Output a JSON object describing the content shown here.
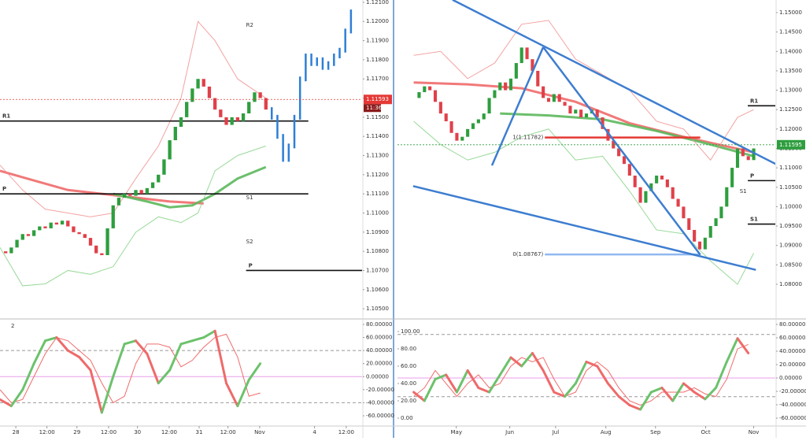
{
  "panels": [
    {
      "xlim": [
        0,
        64
      ],
      "xticks": [
        {
          "value": 2.8,
          "label": "28"
        },
        {
          "value": 8.3,
          "label": "12:00"
        },
        {
          "value": 13.6,
          "label": "29"
        },
        {
          "value": 19.2,
          "label": "12:00"
        },
        {
          "value": 24.3,
          "label": "30"
        },
        {
          "value": 29.9,
          "label": "12:00"
        },
        {
          "value": 35.2,
          "label": "31"
        },
        {
          "value": 40.3,
          "label": "12:00"
        },
        {
          "value": 45.9,
          "label": "Nov"
        },
        {
          "value": 55.6,
          "label": "4"
        },
        {
          "value": 61.2,
          "label": "12:00"
        }
      ],
      "price": {
        "ylim": [
          1.10447,
          1.12112
        ],
        "yticks": [
          {
            "value": 1.105,
            "label": "1.10500"
          },
          {
            "value": 1.106,
            "label": "1.10600"
          },
          {
            "value": 1.107,
            "label": "1.10700"
          },
          {
            "value": 1.108,
            "label": "1.10800"
          },
          {
            "value": 1.109,
            "label": "1.10900"
          },
          {
            "value": 1.11,
            "label": "1.11000"
          },
          {
            "value": 1.111,
            "label": "1.11100"
          },
          {
            "value": 1.112,
            "label": "1.11200"
          },
          {
            "value": 1.113,
            "label": "1.11300"
          },
          {
            "value": 1.114,
            "label": "1.11400"
          },
          {
            "value": 1.115,
            "label": "1.11500"
          },
          {
            "value": 1.116,
            "label": "1.11600"
          },
          {
            "value": 1.117,
            "label": "1.11700"
          },
          {
            "value": 1.118,
            "label": "1.11800"
          },
          {
            "value": 1.119,
            "label": "1.11900"
          },
          {
            "value": 1.12,
            "label": "1.12000"
          },
          {
            "value": 1.121,
            "label": "1.12100"
          }
        ],
        "closes": [
          1.108,
          1.1079,
          1.1082,
          1.1086,
          1.1089,
          1.1088,
          1.1091,
          1.1093,
          1.1092,
          1.1095,
          1.1094,
          1.1096,
          1.1093,
          1.109,
          1.1089,
          1.1087,
          1.1083,
          1.1079,
          1.1078,
          1.1092,
          1.1104,
          1.1108,
          1.111,
          1.1109,
          1.1112,
          1.111,
          1.1113,
          1.1116,
          1.112,
          1.1128,
          1.1138,
          1.1145,
          1.115,
          1.1158,
          1.1165,
          1.117,
          1.1166,
          1.116,
          1.1154,
          1.115,
          1.1146,
          1.115,
          1.1148,
          1.1152,
          1.1158,
          1.1163,
          1.116,
          1.1154
        ],
        "projection": [
          1.115,
          1.114,
          1.1128,
          1.1135,
          1.115,
          1.117,
          1.1182,
          1.1178,
          1.118,
          1.1176,
          1.1178,
          1.1182,
          1.1185,
          1.1195,
          1.1205
        ],
        "lines": [
          {
            "color": "#f06a6a",
            "width": 3,
            "x": [
              0,
              6,
              12,
              18,
              24,
              30,
              36
            ],
            "values": [
              1.1122,
              1.1117,
              1.1112,
              1.111,
              1.1108,
              1.1106,
              1.1105
            ]
          },
          {
            "color": "#5cb85c",
            "width": 3,
            "x": [
              20,
              26,
              30,
              34,
              38,
              42,
              47
            ],
            "values": [
              1.111,
              1.1106,
              1.1103,
              1.1104,
              1.111,
              1.1118,
              1.1124
            ]
          },
          {
            "color": "#f08c8c",
            "width": 1,
            "x": [
              0,
              4,
              8,
              12,
              16,
              20,
              24,
              28,
              32,
              35,
              38,
              42,
              47
            ],
            "values": [
              1.1125,
              1.1112,
              1.1102,
              1.11,
              1.1098,
              1.11,
              1.1118,
              1.1135,
              1.116,
              1.12,
              1.119,
              1.117,
              1.116
            ]
          },
          {
            "color": "#7fd07f",
            "width": 1,
            "x": [
              0,
              4,
              8,
              12,
              16,
              20,
              24,
              28,
              32,
              35,
              38,
              42,
              47
            ],
            "values": [
              1.1082,
              1.1062,
              1.1063,
              1.107,
              1.1068,
              1.1072,
              1.109,
              1.1098,
              1.1095,
              1.11,
              1.1122,
              1.113,
              1.1135
            ]
          }
        ],
        "levels": [
          {
            "label": "R1",
            "value": 1.1148,
            "x": [
              0,
              54.5
            ]
          },
          {
            "label": "P",
            "value": 1.111,
            "x": [
              0,
              54.5
            ]
          },
          {
            "label": "P",
            "value": 1.107,
            "x": [
              43.5,
              64
            ]
          }
        ],
        "faint_levels": [
          {
            "label": "R2",
            "value": 1.1198,
            "x": 43.5
          },
          {
            "label": "S1",
            "value": 1.1108,
            "x": 43.5
          },
          {
            "label": "S2",
            "value": 1.1085,
            "x": 43.5
          }
        ],
        "price_tag": {
          "label": "1.11593",
          "value": 1.11593,
          "time": "11:36",
          "color": "#e53935"
        }
      },
      "osc": {
        "label": "2",
        "ylim": [
          -74.5,
          88.4
        ],
        "yticks": [
          {
            "value": 80,
            "label": "80.00000"
          },
          {
            "value": 60,
            "label": "60.00000"
          },
          {
            "value": 40,
            "label": "40.00000"
          },
          {
            "value": 20,
            "label": "20.00000"
          },
          {
            "value": 0,
            "label": "0.00000"
          },
          {
            "value": -20,
            "label": "-20.00000"
          },
          {
            "value": -40,
            "label": "-40.00000"
          },
          {
            "value": -60,
            "label": "-60.00000"
          }
        ],
        "dashed": [
          40,
          -40
        ],
        "zero": 0,
        "x": [
          0,
          2,
          4,
          6,
          8,
          10,
          12,
          14,
          16,
          18,
          20,
          22,
          24,
          26,
          28,
          30,
          32,
          34,
          36,
          38,
          40,
          42,
          44,
          46
        ],
        "main": [
          -35,
          -45,
          -20,
          20,
          55,
          60,
          40,
          30,
          10,
          -55,
          0,
          50,
          55,
          35,
          -10,
          10,
          50,
          55,
          60,
          70,
          -10,
          -45,
          -5,
          20
        ],
        "signal": [
          -20,
          -40,
          -35,
          0,
          35,
          60,
          55,
          40,
          25,
          -10,
          -40,
          -30,
          20,
          50,
          50,
          45,
          15,
          25,
          45,
          60,
          65,
          30,
          -30,
          -25
        ]
      }
    },
    {
      "xlim": [
        -3,
        67
      ],
      "xticks": [
        {
          "value": 7.9,
          "label": "May"
        },
        {
          "value": 17.8,
          "label": "Jun"
        },
        {
          "value": 26.3,
          "label": "Jul"
        },
        {
          "value": 35.6,
          "label": "Aug"
        },
        {
          "value": 44.8,
          "label": "Sep"
        },
        {
          "value": 54.1,
          "label": "Oct"
        },
        {
          "value": 63,
          "label": "Nov"
        }
      ],
      "price": {
        "ylim": [
          1.07106,
          1.15325
        ],
        "yticks": [
          {
            "value": 1.08,
            "label": "1.08000"
          },
          {
            "value": 1.085,
            "label": "1.08500"
          },
          {
            "value": 1.09,
            "label": "1.09000"
          },
          {
            "value": 1.095,
            "label": "1.09500"
          },
          {
            "value": 1.1,
            "label": "1.10000"
          },
          {
            "value": 1.105,
            "label": "1.10500"
          },
          {
            "value": 1.11,
            "label": "1.11000"
          },
          {
            "value": 1.115,
            "label": "1.11500"
          },
          {
            "value": 1.12,
            "label": "1.12000"
          },
          {
            "value": 1.125,
            "label": "1.12500"
          },
          {
            "value": 1.13,
            "label": "1.13000"
          },
          {
            "value": 1.135,
            "label": "1.13500"
          },
          {
            "value": 1.14,
            "label": "1.14000"
          },
          {
            "value": 1.145,
            "label": "1.14500"
          },
          {
            "value": 1.15,
            "label": "1.15000"
          }
        ],
        "closes": [
          1.128,
          1.1295,
          1.131,
          1.13,
          1.127,
          1.124,
          1.122,
          1.119,
          1.117,
          1.118,
          1.12,
          1.1215,
          1.1225,
          1.124,
          1.128,
          1.13,
          1.132,
          1.13,
          1.133,
          1.137,
          1.141,
          1.138,
          1.135,
          1.131,
          1.128,
          1.127,
          1.129,
          1.127,
          1.126,
          1.124,
          1.125,
          1.123,
          1.124,
          1.125,
          1.123,
          1.12,
          1.117,
          1.115,
          1.113,
          1.111,
          1.108,
          1.105,
          1.101,
          1.104,
          1.106,
          1.108,
          1.107,
          1.105,
          1.102,
          1.1,
          1.097,
          1.094,
          1.091,
          1.089,
          1.092,
          1.095,
          1.097,
          1.1,
          1.105,
          1.11,
          1.115,
          1.113,
          1.112,
          1.115
        ],
        "lines": [
          {
            "color": "#f06a6a",
            "width": 3,
            "x": [
              0,
              10,
              20,
              30,
              40,
              50,
              63
            ],
            "values": [
              1.132,
              1.1315,
              1.1305,
              1.127,
              1.1215,
              1.118,
              1.114
            ]
          },
          {
            "color": "#5cb85c",
            "width": 3,
            "x": [
              16,
              25,
              35,
              45,
              55,
              63
            ],
            "values": [
              1.124,
              1.1235,
              1.1225,
              1.1195,
              1.116,
              1.113
            ]
          },
          {
            "color": "#f08c8c",
            "width": 1,
            "x": [
              0,
              5,
              10,
              15,
              20,
              25,
              30,
              35,
              40,
              45,
              50,
              55,
              60,
              63
            ],
            "values": [
              1.139,
              1.14,
              1.133,
              1.137,
              1.147,
              1.148,
              1.138,
              1.134,
              1.13,
              1.122,
              1.12,
              1.112,
              1.123,
              1.125
            ]
          },
          {
            "color": "#7fd07f",
            "width": 1,
            "x": [
              0,
              5,
              10,
              15,
              20,
              25,
              30,
              35,
              40,
              45,
              50,
              55,
              60,
              63
            ],
            "values": [
              1.122,
              1.116,
              1.112,
              1.114,
              1.118,
              1.12,
              1.112,
              1.113,
              1.104,
              1.094,
              1.093,
              1.086,
              1.08,
              1.088
            ]
          }
        ],
        "trendlines": [
          {
            "x": [
              7.2,
              70.6
            ],
            "values": [
              1.1533,
              1.1085
            ]
          },
          {
            "x": [
              -0.1,
              63.4
            ],
            "values": [
              1.1053,
              1.0837
            ]
          },
          {
            "x": [
              14.5,
              24
            ],
            "values": [
              1.1106,
              1.1411
            ]
          },
          {
            "x": [
              24,
              53.1
            ],
            "values": [
              1.1411,
              1.0876
            ]
          }
        ],
        "fib_lines": [
          {
            "label": "1(1.11782)",
            "value": 1.11782,
            "x": [
              24.3,
              53.1
            ],
            "color": "#e53935"
          },
          {
            "label": "0(1.08767)",
            "value": 1.08767,
            "x": [
              24.3,
              53.1
            ],
            "color": "#90b8f0"
          }
        ],
        "levels": [
          {
            "label": "R1",
            "value": 1.126,
            "x": [
              61.9,
              67
            ]
          },
          {
            "label": "P",
            "value": 1.1067,
            "x": [
              61.9,
              67
            ]
          },
          {
            "label": "S1",
            "value": 1.0955,
            "x": [
              61.9,
              67
            ]
          }
        ],
        "faint_levels": [
          {
            "label": "S1",
            "value": 1.1039,
            "x": 60.4
          }
        ],
        "price_tag": {
          "label": "1.11595",
          "value": 1.11595,
          "color": "#2e9e3e"
        }
      },
      "osc": {
        "ylim": [
          -8.2,
          114.5
        ],
        "y2lim": [
          -70.6,
          88.2
        ],
        "yticks": [
          {
            "value": 0,
            "label": "0.00"
          },
          {
            "value": 20,
            "label": "20.00"
          },
          {
            "value": 40,
            "label": "40.00"
          },
          {
            "value": 60,
            "label": "60.00"
          },
          {
            "value": 80,
            "label": "80.00"
          },
          {
            "value": 100,
            "label": "100.00"
          }
        ],
        "y2ticks": [
          {
            "value": 80,
            "label": "80.00000"
          },
          {
            "value": 60,
            "label": "60.00000"
          },
          {
            "value": 40,
            "label": "40.00000"
          },
          {
            "value": 20,
            "label": "20.00000"
          },
          {
            "value": 0,
            "label": "0.00000"
          },
          {
            "value": -20,
            "label": "-20.00000"
          },
          {
            "value": -40,
            "label": "-40.00000"
          },
          {
            "value": -60,
            "label": "-60.00000"
          }
        ],
        "dashed": [
          65,
          -28
        ],
        "zero": 0,
        "x": [
          0,
          2,
          4,
          6,
          8,
          10,
          12,
          14,
          16,
          18,
          20,
          22,
          24,
          26,
          28,
          30,
          32,
          34,
          36,
          38,
          40,
          42,
          44,
          46,
          48,
          50,
          52,
          54,
          56,
          58,
          60,
          62
        ],
        "main": [
          30,
          20,
          45,
          50,
          30,
          55,
          35,
          30,
          50,
          70,
          60,
          75,
          55,
          30,
          25,
          40,
          65,
          60,
          40,
          25,
          15,
          10,
          30,
          35,
          20,
          40,
          30,
          22,
          35,
          65,
          92,
          75
        ],
        "signal": [
          25,
          35,
          55,
          40,
          25,
          40,
          50,
          35,
          40,
          60,
          70,
          65,
          70,
          45,
          25,
          30,
          55,
          65,
          55,
          35,
          20,
          15,
          20,
          30,
          30,
          30,
          35,
          28,
          25,
          45,
          80,
          85
        ]
      }
    }
  ]
}
